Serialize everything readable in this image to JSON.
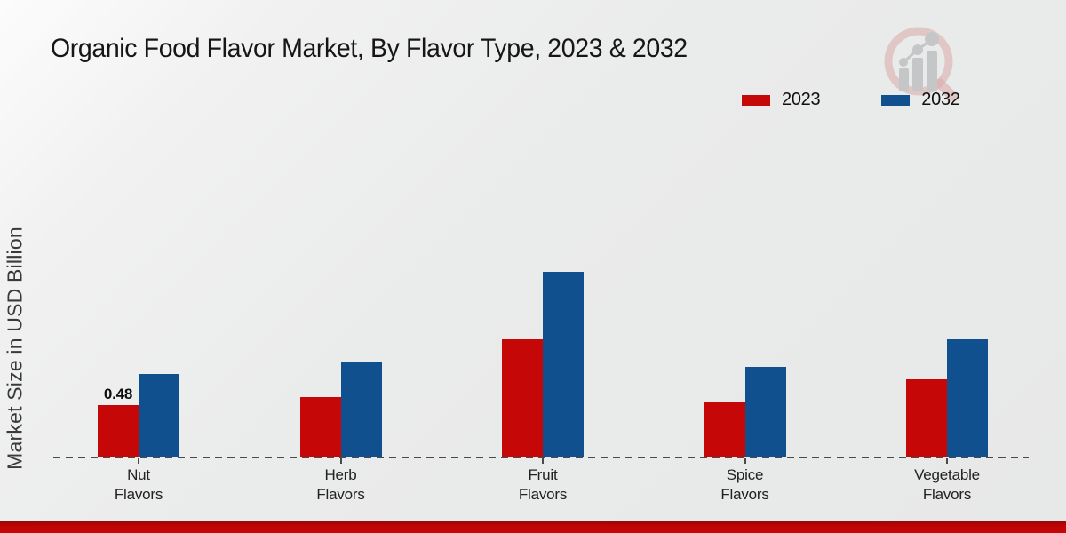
{
  "chart_data": {
    "type": "bar",
    "title": "Organic Food Flavor Market, By Flavor Type, 2023 & 2032",
    "ylabel": "Market Size in USD Billion",
    "xlabel": "",
    "categories": [
      "Nut\nFlavors",
      "Herb\nFlavors",
      "Fruit\nFlavors",
      "Spice\nFlavors",
      "Vegetable\nFlavors"
    ],
    "series": [
      {
        "name": "2023",
        "color": "#c50707",
        "values": [
          0.48,
          0.55,
          1.07,
          0.5,
          0.71
        ]
      },
      {
        "name": "2032",
        "color": "#10508e",
        "values": [
          0.76,
          0.87,
          1.68,
          0.82,
          1.07
        ]
      }
    ],
    "annotations": [
      {
        "series": "2023",
        "category_index": 0,
        "text": "0.48"
      }
    ],
    "ylim": [
      0,
      1.8
    ],
    "grid": false,
    "baseline_style": "dashed",
    "legend_position": "top-right"
  },
  "theme": {
    "background": "#eaebeb",
    "footer_bar_color": "#c20303",
    "axis_line_color": "#4a4a4a",
    "title_color": "#161616",
    "logo_ring_color": "#dba8a8",
    "logo_bar_color": "#c4c6c8"
  }
}
